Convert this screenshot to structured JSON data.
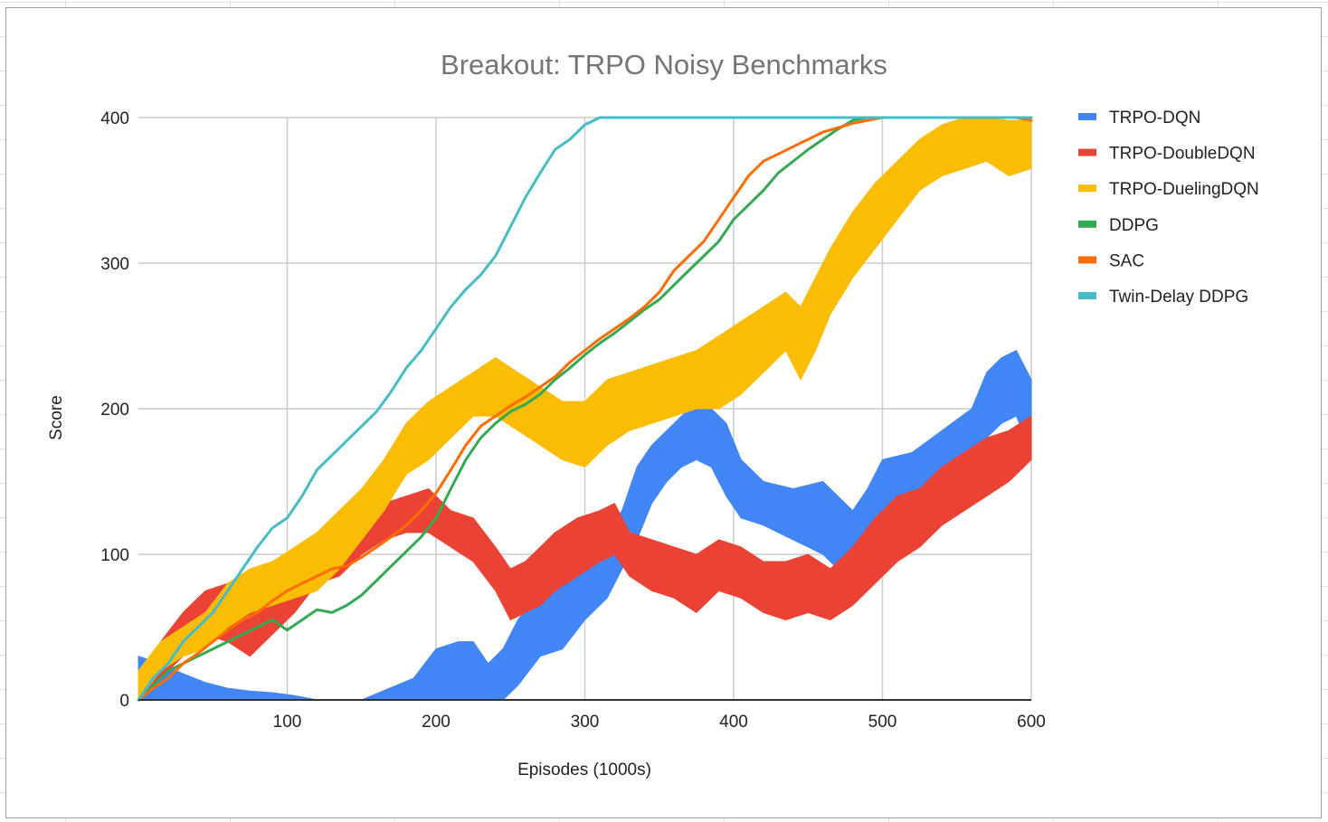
{
  "chart_data": {
    "type": "line",
    "title": "Breakout: TRPO Noisy Benchmarks",
    "xlabel": "Episodes (1000s)",
    "ylabel": "Score",
    "xlim": [
      0,
      600
    ],
    "ylim": [
      0,
      400
    ],
    "x_ticks": [
      100,
      200,
      300,
      400,
      500,
      600
    ],
    "y_ticks": [
      0,
      100,
      200,
      300,
      400
    ],
    "grid": true,
    "legend_position": "right",
    "series": [
      {
        "name": "TRPO-DQN",
        "color": "#4285F4",
        "style": "band",
        "x": [
          0,
          15,
          30,
          45,
          60,
          75,
          90,
          105,
          120,
          150,
          185,
          200,
          215,
          225,
          235,
          245,
          255,
          270,
          285,
          300,
          315,
          325,
          335,
          345,
          355,
          365,
          375,
          385,
          395,
          405,
          420,
          440,
          460,
          470,
          480,
          490,
          500,
          520,
          540,
          560,
          570,
          580,
          590,
          600
        ],
        "lower": [
          0,
          0,
          0,
          0,
          0,
          0,
          0,
          0,
          0,
          0,
          0,
          0,
          0,
          0,
          0,
          0,
          10,
          30,
          35,
          55,
          70,
          90,
          110,
          135,
          150,
          160,
          165,
          160,
          140,
          125,
          120,
          110,
          100,
          90,
          85,
          110,
          125,
          135,
          145,
          160,
          180,
          190,
          195,
          170
        ],
        "upper": [
          30,
          25,
          18,
          12,
          8,
          6,
          5,
          3,
          0,
          0,
          15,
          35,
          40,
          40,
          25,
          35,
          55,
          75,
          90,
          100,
          115,
          130,
          160,
          175,
          185,
          195,
          205,
          200,
          190,
          165,
          150,
          145,
          150,
          140,
          130,
          145,
          165,
          170,
          185,
          200,
          225,
          235,
          240,
          220
        ]
      },
      {
        "name": "TRPO-DoubleDQN",
        "color": "#EA4335",
        "style": "band",
        "x": [
          0,
          15,
          30,
          45,
          60,
          75,
          90,
          105,
          120,
          135,
          150,
          165,
          180,
          195,
          210,
          225,
          240,
          250,
          260,
          270,
          280,
          295,
          310,
          320,
          330,
          345,
          360,
          375,
          390,
          405,
          420,
          435,
          450,
          465,
          480,
          495,
          510,
          525,
          540,
          555,
          570,
          585,
          600
        ],
        "lower": [
          0,
          15,
          30,
          45,
          40,
          30,
          45,
          60,
          80,
          85,
          100,
          110,
          115,
          115,
          105,
          95,
          75,
          55,
          60,
          65,
          75,
          85,
          95,
          100,
          85,
          75,
          70,
          60,
          75,
          70,
          60,
          55,
          60,
          55,
          65,
          80,
          95,
          105,
          120,
          130,
          140,
          150,
          165
        ],
        "upper": [
          15,
          40,
          60,
          75,
          80,
          75,
          85,
          100,
          110,
          120,
          125,
          135,
          140,
          145,
          130,
          125,
          105,
          90,
          95,
          105,
          115,
          125,
          130,
          135,
          115,
          110,
          105,
          100,
          110,
          105,
          95,
          95,
          100,
          90,
          105,
          125,
          140,
          145,
          160,
          170,
          180,
          185,
          195
        ]
      },
      {
        "name": "TRPO-DuelingDQN",
        "color": "#FBBC04",
        "style": "band",
        "x": [
          0,
          15,
          30,
          45,
          60,
          75,
          90,
          105,
          120,
          135,
          150,
          165,
          180,
          195,
          210,
          225,
          240,
          255,
          270,
          285,
          300,
          315,
          330,
          345,
          360,
          375,
          390,
          405,
          420,
          435,
          445,
          455,
          465,
          480,
          495,
          510,
          525,
          540,
          555,
          570,
          585,
          600
        ],
        "lower": [
          0,
          20,
          30,
          35,
          50,
          60,
          65,
          70,
          75,
          90,
          110,
          130,
          155,
          165,
          180,
          195,
          195,
          185,
          175,
          165,
          160,
          175,
          185,
          190,
          195,
          200,
          200,
          210,
          225,
          240,
          220,
          240,
          265,
          290,
          310,
          330,
          350,
          360,
          365,
          370,
          360,
          365
        ],
        "upper": [
          20,
          40,
          50,
          60,
          80,
          90,
          95,
          105,
          115,
          130,
          145,
          165,
          190,
          205,
          215,
          225,
          235,
          225,
          215,
          205,
          205,
          220,
          225,
          230,
          235,
          240,
          250,
          260,
          270,
          280,
          270,
          290,
          310,
          335,
          355,
          370,
          385,
          395,
          400,
          400,
          398,
          398
        ]
      },
      {
        "name": "DDPG",
        "color": "#34A853",
        "style": "line",
        "x": [
          0,
          10,
          20,
          30,
          40,
          50,
          60,
          70,
          80,
          90,
          100,
          110,
          120,
          130,
          140,
          150,
          160,
          170,
          180,
          190,
          200,
          210,
          220,
          230,
          240,
          250,
          260,
          270,
          280,
          290,
          300,
          310,
          320,
          330,
          340,
          350,
          360,
          370,
          380,
          390,
          400,
          410,
          420,
          430,
          440,
          450,
          460,
          470,
          480,
          490,
          500,
          510,
          520,
          530,
          540,
          550,
          560,
          570,
          580,
          590,
          600
        ],
        "y": [
          0,
          10,
          20,
          25,
          30,
          35,
          40,
          45,
          50,
          55,
          48,
          55,
          62,
          60,
          65,
          72,
          82,
          92,
          102,
          112,
          125,
          145,
          165,
          180,
          190,
          198,
          203,
          210,
          220,
          228,
          237,
          245,
          252,
          260,
          268,
          275,
          285,
          295,
          305,
          315,
          330,
          340,
          350,
          362,
          370,
          378,
          385,
          392,
          398,
          400,
          400,
          400,
          400,
          400,
          400,
          400,
          400,
          400,
          400,
          400,
          398
        ]
      },
      {
        "name": "SAC",
        "color": "#FF6D01",
        "style": "line",
        "x": [
          0,
          10,
          20,
          30,
          40,
          50,
          60,
          70,
          80,
          90,
          100,
          110,
          120,
          130,
          140,
          150,
          160,
          170,
          180,
          190,
          200,
          210,
          220,
          230,
          240,
          250,
          260,
          270,
          280,
          290,
          300,
          310,
          320,
          330,
          340,
          350,
          360,
          370,
          380,
          390,
          400,
          410,
          420,
          430,
          440,
          450,
          460,
          470,
          480,
          490,
          500,
          510,
          520,
          530,
          540,
          550,
          560,
          570,
          580,
          590,
          600
        ],
        "y": [
          0,
          8,
          15,
          25,
          32,
          40,
          48,
          55,
          60,
          68,
          75,
          80,
          85,
          90,
          92,
          98,
          105,
          112,
          120,
          130,
          142,
          158,
          175,
          188,
          195,
          202,
          208,
          215,
          222,
          232,
          240,
          248,
          255,
          262,
          270,
          280,
          295,
          305,
          315,
          330,
          345,
          360,
          370,
          375,
          380,
          385,
          390,
          393,
          396,
          398,
          400,
          400,
          400,
          400,
          400,
          400,
          400,
          400,
          400,
          400,
          398
        ]
      },
      {
        "name": "Twin-Delay DDPG",
        "color": "#46BDC6",
        "style": "line",
        "x": [
          0,
          10,
          20,
          30,
          40,
          50,
          60,
          70,
          80,
          90,
          100,
          110,
          120,
          130,
          140,
          150,
          160,
          170,
          180,
          190,
          200,
          210,
          220,
          230,
          240,
          250,
          260,
          270,
          280,
          290,
          300,
          310,
          320,
          340,
          360,
          380,
          400,
          420,
          440,
          460,
          480,
          500,
          520,
          540,
          560,
          580,
          600
        ],
        "y": [
          0,
          15,
          25,
          40,
          50,
          60,
          75,
          90,
          105,
          118,
          125,
          140,
          158,
          168,
          178,
          188,
          198,
          212,
          228,
          240,
          255,
          270,
          282,
          292,
          305,
          325,
          345,
          362,
          378,
          385,
          395,
          400,
          400,
          400,
          400,
          400,
          400,
          400,
          400,
          400,
          400,
          400,
          400,
          400,
          400,
          400,
          400
        ]
      }
    ]
  }
}
